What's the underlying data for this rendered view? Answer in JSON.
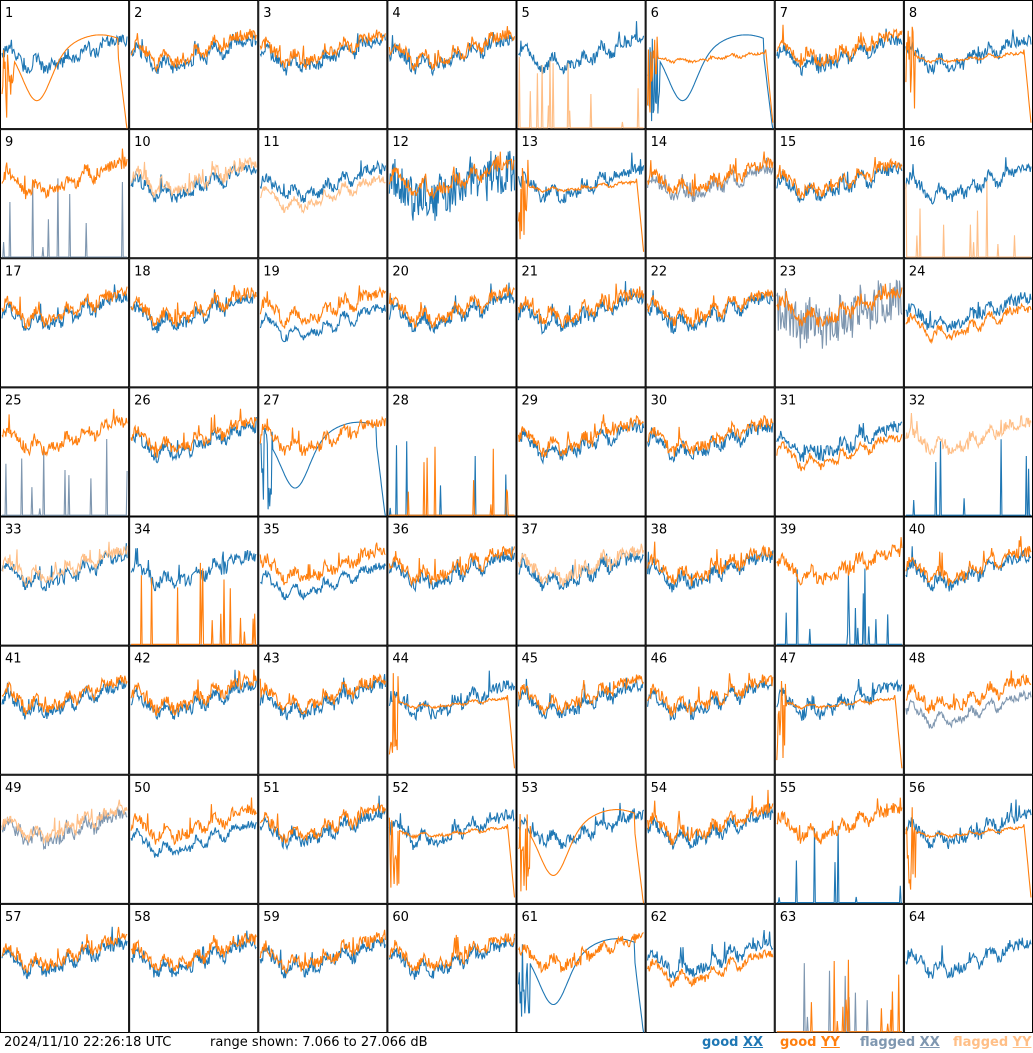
{
  "footer": {
    "timestamp": "2024/11/10 22:26:18 UTC",
    "range": "range shown: 7.066 to 27.066 dB"
  },
  "legend": [
    {
      "prefix": "good ",
      "pol": "XX",
      "color": "#1f77b4",
      "name": "good-xx"
    },
    {
      "prefix": "good ",
      "pol": "YY",
      "color": "#ff7f0e",
      "name": "good-yy"
    },
    {
      "prefix": "flagged ",
      "pol": "XX",
      "color": "#7f97b0",
      "name": "flagged-xx"
    },
    {
      "prefix": "flagged ",
      "pol": "YY",
      "color": "#ffbf87",
      "name": "flagged-yy"
    }
  ],
  "chart_data": {
    "type": "line",
    "layout": "8x8 small multiples",
    "ylim": [
      7.066,
      27.066
    ],
    "yunit": "dB",
    "panels": [
      {
        "id": "1",
        "xx": "good",
        "yy": "good",
        "shape_xx": "normal",
        "shape_yy": "dip"
      },
      {
        "id": "2",
        "xx": "good",
        "yy": "good",
        "shape_xx": "normal",
        "shape_yy": "normal"
      },
      {
        "id": "3",
        "xx": "good",
        "yy": "good",
        "shape_xx": "normal",
        "shape_yy": "normal"
      },
      {
        "id": "4",
        "xx": "good",
        "yy": "good",
        "shape_xx": "normal",
        "shape_yy": "normal"
      },
      {
        "id": "5",
        "xx": "good",
        "yy": "flagged",
        "shape_xx": "normal",
        "shape_yy": "spikes"
      },
      {
        "id": "6",
        "xx": "good",
        "yy": "good",
        "shape_xx": "dip",
        "shape_yy": "flat"
      },
      {
        "id": "7",
        "xx": "good",
        "yy": "good",
        "shape_xx": "normal",
        "shape_yy": "normal"
      },
      {
        "id": "8",
        "xx": "good",
        "yy": "good",
        "shape_xx": "normal",
        "shape_yy": "flat"
      },
      {
        "id": "9",
        "xx": "flagged",
        "yy": "good",
        "shape_xx": "spikes",
        "shape_yy": "normal"
      },
      {
        "id": "10",
        "xx": "good",
        "yy": "flagged",
        "shape_xx": "normal",
        "shape_yy": "normal"
      },
      {
        "id": "11",
        "xx": "good",
        "yy": "flagged",
        "shape_xx": "normal",
        "shape_yy": "low"
      },
      {
        "id": "12",
        "xx": "good",
        "yy": "good",
        "shape_xx": "noisy",
        "shape_yy": "normal"
      },
      {
        "id": "13",
        "xx": "good",
        "yy": "good",
        "shape_xx": "normal",
        "shape_yy": "flat"
      },
      {
        "id": "14",
        "xx": "flagged",
        "yy": "good",
        "shape_xx": "normal",
        "shape_yy": "normal"
      },
      {
        "id": "15",
        "xx": "good",
        "yy": "good",
        "shape_xx": "normal",
        "shape_yy": "normal"
      },
      {
        "id": "16",
        "xx": "good",
        "yy": "flagged",
        "shape_xx": "normal",
        "shape_yy": "spikes"
      },
      {
        "id": "17",
        "xx": "good",
        "yy": "good",
        "shape_xx": "normal",
        "shape_yy": "normal"
      },
      {
        "id": "18",
        "xx": "good",
        "yy": "good",
        "shape_xx": "normal",
        "shape_yy": "normal"
      },
      {
        "id": "19",
        "xx": "good",
        "yy": "good",
        "shape_xx": "low",
        "shape_yy": "normal"
      },
      {
        "id": "20",
        "xx": "good",
        "yy": "good",
        "shape_xx": "normal",
        "shape_yy": "normal"
      },
      {
        "id": "21",
        "xx": "good",
        "yy": "good",
        "shape_xx": "normal",
        "shape_yy": "normal"
      },
      {
        "id": "22",
        "xx": "good",
        "yy": "good",
        "shape_xx": "normal",
        "shape_yy": "normal"
      },
      {
        "id": "23",
        "xx": "flagged",
        "yy": "good",
        "shape_xx": "noisy",
        "shape_yy": "normal"
      },
      {
        "id": "24",
        "xx": "good",
        "yy": "good",
        "shape_xx": "normal",
        "shape_yy": "low"
      },
      {
        "id": "25",
        "xx": "flagged",
        "yy": "good",
        "shape_xx": "spikes",
        "shape_yy": "normal"
      },
      {
        "id": "26",
        "xx": "good",
        "yy": "good",
        "shape_xx": "normal",
        "shape_yy": "normal"
      },
      {
        "id": "27",
        "xx": "good",
        "yy": "good",
        "shape_xx": "dip",
        "shape_yy": "normal"
      },
      {
        "id": "28",
        "xx": "good",
        "yy": "good",
        "shape_xx": "spikes",
        "shape_yy": "spikes"
      },
      {
        "id": "29",
        "xx": "good",
        "yy": "good",
        "shape_xx": "normal",
        "shape_yy": "normal"
      },
      {
        "id": "30",
        "xx": "good",
        "yy": "good",
        "shape_xx": "normal",
        "shape_yy": "normal"
      },
      {
        "id": "31",
        "xx": "good",
        "yy": "good",
        "shape_xx": "normal",
        "shape_yy": "low"
      },
      {
        "id": "32",
        "xx": "good",
        "yy": "flagged",
        "shape_xx": "spikes",
        "shape_yy": "normal"
      },
      {
        "id": "33",
        "xx": "good",
        "yy": "flagged",
        "shape_xx": "normal",
        "shape_yy": "normal"
      },
      {
        "id": "34",
        "xx": "good",
        "yy": "good",
        "shape_xx": "normal",
        "shape_yy": "spikes"
      },
      {
        "id": "35",
        "xx": "good",
        "yy": "good",
        "shape_xx": "low",
        "shape_yy": "normal"
      },
      {
        "id": "36",
        "xx": "good",
        "yy": "good",
        "shape_xx": "normal",
        "shape_yy": "normal"
      },
      {
        "id": "37",
        "xx": "good",
        "yy": "flagged",
        "shape_xx": "normal",
        "shape_yy": "normal"
      },
      {
        "id": "38",
        "xx": "good",
        "yy": "good",
        "shape_xx": "normal",
        "shape_yy": "normal"
      },
      {
        "id": "39",
        "xx": "good",
        "yy": "good",
        "shape_xx": "spikes",
        "shape_yy": "normal"
      },
      {
        "id": "40",
        "xx": "good",
        "yy": "good",
        "shape_xx": "normal",
        "shape_yy": "normal"
      },
      {
        "id": "41",
        "xx": "good",
        "yy": "good",
        "shape_xx": "normal",
        "shape_yy": "normal"
      },
      {
        "id": "42",
        "xx": "good",
        "yy": "good",
        "shape_xx": "normal",
        "shape_yy": "normal"
      },
      {
        "id": "43",
        "xx": "good",
        "yy": "good",
        "shape_xx": "normal",
        "shape_yy": "normal"
      },
      {
        "id": "44",
        "xx": "good",
        "yy": "good",
        "shape_xx": "normal",
        "shape_yy": "flat"
      },
      {
        "id": "45",
        "xx": "good",
        "yy": "good",
        "shape_xx": "normal",
        "shape_yy": "normal"
      },
      {
        "id": "46",
        "xx": "good",
        "yy": "good",
        "shape_xx": "normal",
        "shape_yy": "normal"
      },
      {
        "id": "47",
        "xx": "good",
        "yy": "good",
        "shape_xx": "normal",
        "shape_yy": "flat"
      },
      {
        "id": "48",
        "xx": "flagged",
        "yy": "good",
        "shape_xx": "low",
        "shape_yy": "normal"
      },
      {
        "id": "49",
        "xx": "flagged",
        "yy": "flagged",
        "shape_xx": "normal",
        "shape_yy": "normal"
      },
      {
        "id": "50",
        "xx": "good",
        "yy": "good",
        "shape_xx": "low",
        "shape_yy": "normal"
      },
      {
        "id": "51",
        "xx": "good",
        "yy": "good",
        "shape_xx": "normal",
        "shape_yy": "normal"
      },
      {
        "id": "52",
        "xx": "good",
        "yy": "good",
        "shape_xx": "normal",
        "shape_yy": "flat"
      },
      {
        "id": "53",
        "xx": "good",
        "yy": "good",
        "shape_xx": "normal",
        "shape_yy": "dip"
      },
      {
        "id": "54",
        "xx": "good",
        "yy": "good",
        "shape_xx": "normal",
        "shape_yy": "normal"
      },
      {
        "id": "55",
        "xx": "good",
        "yy": "good",
        "shape_xx": "spikes",
        "shape_yy": "normal"
      },
      {
        "id": "56",
        "xx": "good",
        "yy": "good",
        "shape_xx": "normal",
        "shape_yy": "flat"
      },
      {
        "id": "57",
        "xx": "good",
        "yy": "good",
        "shape_xx": "normal",
        "shape_yy": "normal"
      },
      {
        "id": "58",
        "xx": "good",
        "yy": "good",
        "shape_xx": "normal",
        "shape_yy": "normal"
      },
      {
        "id": "59",
        "xx": "good",
        "yy": "good",
        "shape_xx": "normal",
        "shape_yy": "normal"
      },
      {
        "id": "60",
        "xx": "good",
        "yy": "good",
        "shape_xx": "normal",
        "shape_yy": "normal"
      },
      {
        "id": "61",
        "xx": "good",
        "yy": "good",
        "shape_xx": "dip",
        "shape_yy": "normal"
      },
      {
        "id": "62",
        "xx": "good",
        "yy": "good",
        "shape_xx": "normal",
        "shape_yy": "low"
      },
      {
        "id": "63",
        "xx": "flagged",
        "yy": "good",
        "shape_xx": "spikes",
        "shape_yy": "spikes"
      },
      {
        "id": "64",
        "xx": "good",
        "yy": "none",
        "shape_xx": "normal",
        "shape_yy": "none"
      }
    ]
  }
}
